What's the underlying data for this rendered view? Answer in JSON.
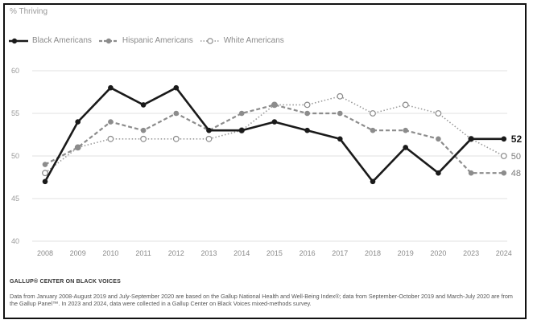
{
  "chart_data": {
    "type": "line",
    "ylabel": "% Thriving",
    "categories": [
      "2008",
      "2009",
      "2010",
      "2011",
      "2012",
      "2013",
      "2014",
      "2015",
      "2016",
      "2017",
      "2018",
      "2019",
      "2020",
      "2023",
      "2024"
    ],
    "ylim": [
      40,
      60
    ],
    "yticks": [
      "60",
      "55",
      "50",
      "45",
      "40"
    ],
    "grid": true,
    "legend_position": "top-left",
    "series": [
      {
        "name": "Black Americans",
        "style": "solid",
        "marker": "filled-black",
        "color": "#1a1a1a",
        "values": [
          47,
          54,
          58,
          56,
          58,
          53,
          53,
          54,
          53,
          52,
          47,
          51,
          48,
          52,
          52
        ],
        "end_label": "52"
      },
      {
        "name": "Hispanic Americans",
        "style": "dashed",
        "marker": "filled-gray",
        "color": "#8c8c8c",
        "values": [
          49,
          51,
          54,
          53,
          55,
          53,
          55,
          56,
          55,
          55,
          53,
          53,
          52,
          48,
          48
        ],
        "end_label": "48"
      },
      {
        "name": "White Americans",
        "style": "dotted",
        "marker": "open",
        "color": "#9a9a9a",
        "values": [
          48,
          51,
          52,
          52,
          52,
          52,
          53,
          56,
          56,
          57,
          55,
          56,
          55,
          52,
          50
        ],
        "end_label": "50"
      }
    ]
  },
  "footer": {
    "brand": "GALLUP® CENTER ON BLACK VOICES",
    "note": "Data from January 2008-August 2019 and July-September 2020 are based on the Gallup National Health and Well-Being Index®; data from September-October 2019 and March-July 2020 are from the Gallup Panel™. In 2023 and 2024, data were collected in a Gallup Center on Black Voices mixed-methods survey."
  }
}
